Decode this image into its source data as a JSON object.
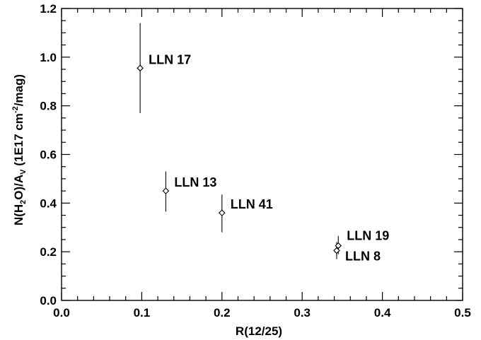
{
  "chart_data": {
    "type": "scatter",
    "title": "",
    "xlabel": "R(12/25)",
    "ylabel": {
      "pre": "N(H",
      "sub1": "2",
      "mid": "O)/A",
      "sub2": "V",
      "post1": " (1E17 cm",
      "sup": "-2",
      "post2": "/mag)"
    },
    "xlim": [
      0.0,
      0.5
    ],
    "ylim": [
      0.0,
      1.2
    ],
    "xticks": [
      "0.0",
      "0.1",
      "0.2",
      "0.3",
      "0.4",
      "0.5"
    ],
    "yticks": [
      "0.0",
      "0.2",
      "0.4",
      "0.6",
      "0.8",
      "1.0",
      "1.2"
    ],
    "grid": false,
    "marker": "open-diamond",
    "points": [
      {
        "label": "LLN 17",
        "x": 0.098,
        "y": 0.955,
        "yerr_low": 0.77,
        "yerr_high": 1.14
      },
      {
        "label": "LLN 13",
        "x": 0.13,
        "y": 0.45,
        "yerr_low": 0.365,
        "yerr_high": 0.53
      },
      {
        "label": "LLN 41",
        "x": 0.2,
        "y": 0.36,
        "yerr_low": 0.28,
        "yerr_high": 0.435
      },
      {
        "label": "LLN 19",
        "x": 0.345,
        "y": 0.225,
        "yerr_low": 0.19,
        "yerr_high": 0.265
      },
      {
        "label": "LLN 8",
        "x": 0.343,
        "y": 0.205,
        "yerr_low": 0.17,
        "yerr_high": 0.24
      }
    ]
  }
}
